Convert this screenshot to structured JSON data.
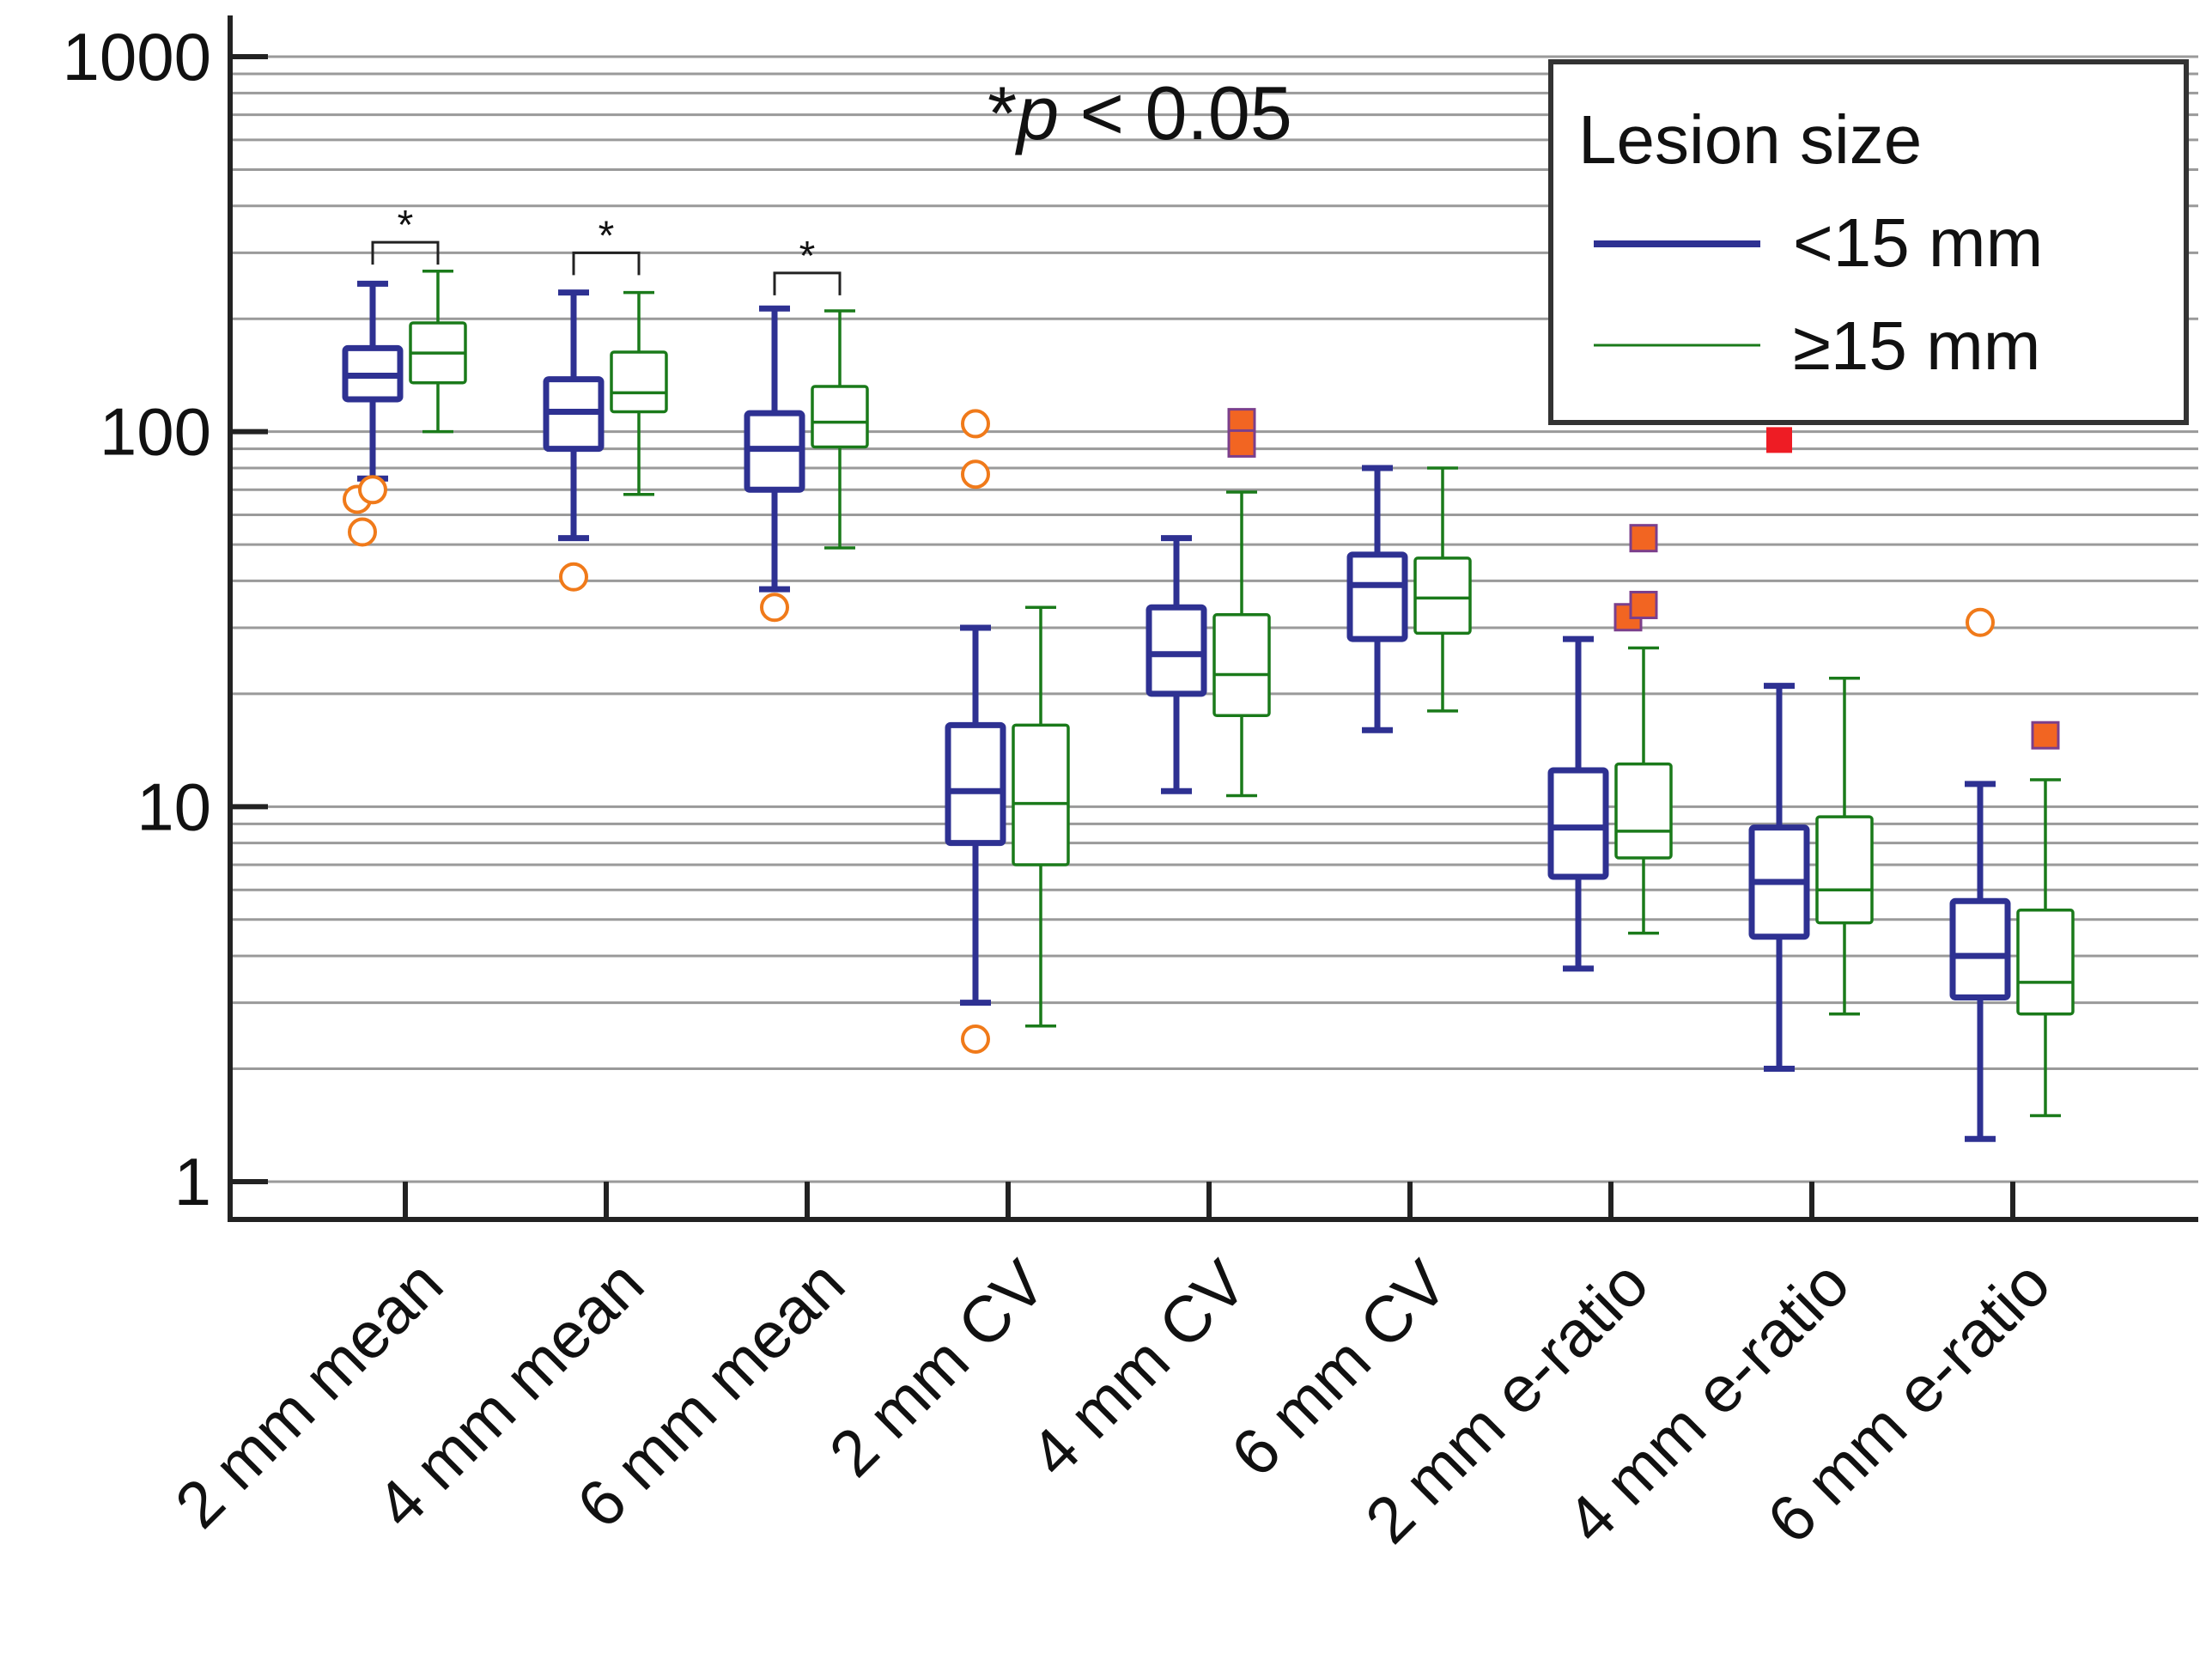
{
  "chart_data": {
    "type": "box",
    "yscale": "log",
    "ylim": [
      0.85,
      1100
    ],
    "yticks": [
      {
        "value": 1,
        "label": "1"
      },
      {
        "value": 10,
        "label": "10"
      },
      {
        "value": 100,
        "label": "100"
      },
      {
        "value": 1000,
        "label": "1000"
      }
    ],
    "grid": true,
    "legend": {
      "title": "Lesion size",
      "position": "top-right",
      "entries": [
        {
          "label": "<15 mm",
          "color": "#2e3192"
        },
        {
          "label": "≥15 mm",
          "color": "#1a7a1a"
        }
      ]
    },
    "annotation": {
      "star": "*",
      "p": "p",
      "rest": " < 0.05"
    },
    "categories": [
      "2 mm mean",
      "4 mm mean",
      "6 mm mean",
      "2 mm CV",
      "4 mm CV",
      "6 mm CV",
      "2 mm e-ratio",
      "4 mm e-ratio",
      "6 mm e-ratio"
    ],
    "significance": [
      {
        "category": 0,
        "label": "*",
        "level": 320
      },
      {
        "category": 1,
        "label": "*",
        "level": 300
      },
      {
        "category": 2,
        "label": "*",
        "level": 265
      }
    ],
    "series": [
      {
        "name": "<15 mm",
        "color": "#2e3192",
        "boxes": [
          {
            "min": 75,
            "q1": 122,
            "median": 141,
            "q3": 167,
            "max": 248
          },
          {
            "min": 52,
            "q1": 90,
            "median": 113,
            "q3": 138,
            "max": 235
          },
          {
            "min": 38,
            "q1": 70,
            "median": 90,
            "q3": 112,
            "max": 213
          },
          {
            "min": 3.0,
            "q1": 8.0,
            "median": 11.0,
            "q3": 16.5,
            "max": 30
          },
          {
            "min": 11,
            "q1": 20,
            "median": 25.5,
            "q3": 34,
            "max": 52
          },
          {
            "min": 16,
            "q1": 28,
            "median": 39,
            "q3": 47,
            "max": 80
          },
          {
            "min": 3.7,
            "q1": 6.5,
            "median": 8.8,
            "q3": 12.5,
            "max": 28
          },
          {
            "min": 2.0,
            "q1": 4.5,
            "median": 6.3,
            "q3": 8.8,
            "max": 21
          },
          {
            "min": 1.3,
            "q1": 3.1,
            "median": 4.0,
            "q3": 5.6,
            "max": 11.5
          }
        ],
        "outliers": [
          {
            "category": 0,
            "value": 66,
            "shape": "circle"
          },
          {
            "category": 0,
            "value": 70,
            "shape": "circle"
          },
          {
            "category": 0,
            "value": 54,
            "shape": "circle"
          },
          {
            "category": 1,
            "value": 41,
            "shape": "circle"
          },
          {
            "category": 2,
            "value": 34,
            "shape": "circle"
          },
          {
            "category": 3,
            "value": 105,
            "shape": "circle"
          },
          {
            "category": 3,
            "value": 77,
            "shape": "circle"
          },
          {
            "category": 3,
            "value": 2.4,
            "shape": "circle"
          },
          {
            "category": 7,
            "value": 95,
            "shape": "square-red"
          },
          {
            "category": 8,
            "value": 31,
            "shape": "circle"
          }
        ]
      },
      {
        "name": "≥15 mm",
        "color": "#1a7a1a",
        "boxes": [
          {
            "min": 100,
            "q1": 135,
            "median": 162,
            "q3": 195,
            "max": 268
          },
          {
            "min": 68,
            "q1": 113,
            "median": 127,
            "q3": 163,
            "max": 235
          },
          {
            "min": 49,
            "q1": 91,
            "median": 106,
            "q3": 132,
            "max": 210
          },
          {
            "min": 2.6,
            "q1": 7.0,
            "median": 10.2,
            "q3": 16.5,
            "max": 34
          },
          {
            "min": 10.7,
            "q1": 17.5,
            "median": 22.5,
            "q3": 32.5,
            "max": 69
          },
          {
            "min": 18,
            "q1": 29,
            "median": 36,
            "q3": 46,
            "max": 80
          },
          {
            "min": 4.6,
            "q1": 7.3,
            "median": 8.6,
            "q3": 13,
            "max": 26.5
          },
          {
            "min": 2.8,
            "q1": 4.9,
            "median": 6.0,
            "q3": 9.4,
            "max": 22
          },
          {
            "min": 1.5,
            "q1": 2.8,
            "median": 3.4,
            "q3": 5.3,
            "max": 11.8
          }
        ],
        "outliers": [
          {
            "category": 4,
            "value": 106,
            "shape": "square"
          },
          {
            "category": 4,
            "value": 93,
            "shape": "square"
          },
          {
            "category": 6,
            "value": 52,
            "shape": "square"
          },
          {
            "category": 6,
            "value": 32,
            "shape": "square"
          },
          {
            "category": 6,
            "value": 34.5,
            "shape": "square"
          },
          {
            "category": 8,
            "value": 15.5,
            "shape": "square"
          }
        ]
      }
    ],
    "outlier_colors": {
      "circle": "#f07a1a",
      "square_fill": "#f26522",
      "square_edge": "#7b3f8c",
      "square_red": "#ee1c24"
    }
  }
}
